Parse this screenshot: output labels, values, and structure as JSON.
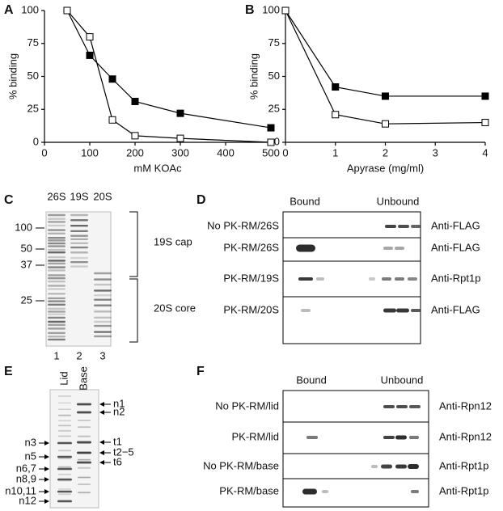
{
  "chart_data": [
    {
      "type": "line",
      "label": "A",
      "xlabel": "mM KOAc",
      "ylabel": "% binding",
      "xlim": [
        0,
        500
      ],
      "xticks": [
        0,
        100,
        200,
        300,
        400,
        500
      ],
      "ylim": [
        0,
        100
      ],
      "yticks": [
        0,
        25,
        50,
        75,
        100
      ],
      "x": [
        50,
        100,
        150,
        200,
        300,
        500
      ],
      "series": [
        {
          "color": "#000000",
          "marker_fill": "#000000",
          "values": [
            100,
            66,
            48,
            31,
            22,
            11
          ]
        },
        {
          "color": "#000000",
          "marker_fill": "#ffffff",
          "values": [
            100,
            80,
            17,
            5,
            3,
            0
          ]
        }
      ]
    },
    {
      "type": "line",
      "label": "B",
      "xlabel": "Apyrase (mg/ml)",
      "ylabel": "% binding",
      "xlim": [
        0,
        4
      ],
      "xticks": [
        0,
        1,
        2,
        3,
        4
      ],
      "ylim": [
        0,
        100
      ],
      "yticks": [
        0,
        25,
        50,
        75,
        100
      ],
      "x": [
        0,
        1,
        2,
        4
      ],
      "series": [
        {
          "color": "#000000",
          "marker_fill": "#000000",
          "values": [
            100,
            42,
            35,
            35
          ]
        },
        {
          "color": "#000000",
          "marker_fill": "#ffffff",
          "values": [
            100,
            21,
            14,
            15
          ]
        }
      ]
    }
  ],
  "panel_c": {
    "label": "C",
    "lanes": [
      "26S",
      "19S",
      "20S"
    ],
    "markers": [
      "100",
      "50",
      "37",
      "25"
    ],
    "brackets": [
      "19S cap",
      "20S core"
    ],
    "lane_numbers": [
      "1",
      "2",
      "3"
    ]
  },
  "panel_d": {
    "label": "D",
    "headers": [
      "Bound",
      "Unbound"
    ],
    "rows": [
      [
        "No PK-RM/26S",
        "Anti-FLAG"
      ],
      [
        "PK-RM/26S",
        "Anti-FLAG"
      ],
      [
        "PK-RM/19S",
        "Anti-Rpt1p"
      ],
      [
        "PK-RM/20S",
        "Anti-FLAG"
      ]
    ]
  },
  "panel_e": {
    "label": "E",
    "lanes": [
      "Lid",
      "Base"
    ],
    "left_labels": [
      "n3",
      "n5",
      "n6,7",
      "n8,9",
      "n10,11",
      "n12"
    ],
    "right_labels": [
      "n1",
      "n2",
      "t1",
      "t2−5",
      "t6"
    ]
  },
  "panel_f": {
    "label": "F",
    "headers": [
      "Bound",
      "Unbound"
    ],
    "rows": [
      [
        "No PK-RM/lid",
        "Anti-Rpn12"
      ],
      [
        "PK-RM/lid",
        "Anti-Rpn12"
      ],
      [
        "No PK-RM/base",
        "Anti-Rpt1p"
      ],
      [
        "PK-RM/base",
        "Anti-Rpt1p"
      ]
    ]
  }
}
